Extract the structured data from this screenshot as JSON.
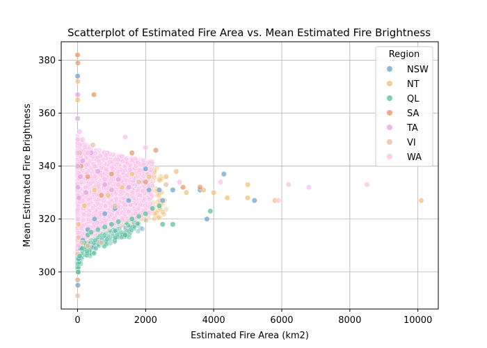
{
  "chart_data": {
    "type": "scatter",
    "title": "Scatterplot of Estimated Fire Area vs. Mean Estimated Fire Brightness",
    "xlabel": "Estimated Fire Area (km2)",
    "ylabel": "Mean Estimated Fire Brightness",
    "xlim": [
      -480,
      10600
    ],
    "ylim": [
      286,
      387
    ],
    "xticks": [
      0,
      2000,
      4000,
      6000,
      8000,
      10000
    ],
    "yticks": [
      300,
      320,
      340,
      360,
      380
    ],
    "grid": true,
    "legend": {
      "title": "Region",
      "placement": "top-right"
    },
    "series": [
      {
        "name": "NSW",
        "color": "#6fa6cf",
        "values": [
          [
            3,
            374
          ],
          [
            8,
            295
          ],
          [
            5,
            358
          ],
          [
            15,
            300
          ],
          [
            40,
            305
          ],
          [
            80,
            309
          ],
          [
            150,
            312
          ],
          [
            300,
            316
          ],
          [
            500,
            320
          ],
          [
            800,
            322
          ],
          [
            1100,
            324
          ],
          [
            1500,
            327
          ],
          [
            2000,
            339
          ],
          [
            2100,
            331
          ],
          [
            2400,
            331
          ],
          [
            2500,
            327
          ],
          [
            2800,
            331
          ],
          [
            3600,
            331
          ],
          [
            3800,
            320
          ],
          [
            4300,
            337
          ],
          [
            5200,
            327
          ]
        ]
      },
      {
        "name": "NT",
        "color": "#f0c27d",
        "values": [
          [
            2,
            365
          ],
          [
            6,
            372
          ],
          [
            4,
            300
          ],
          [
            30,
            318
          ],
          [
            200,
            325
          ],
          [
            500,
            331
          ],
          [
            900,
            329
          ],
          [
            1300,
            332
          ],
          [
            1600,
            337
          ],
          [
            2100,
            336
          ],
          [
            2600,
            336
          ],
          [
            2900,
            338
          ],
          [
            3200,
            330
          ],
          [
            3700,
            331
          ],
          [
            4000,
            330
          ],
          [
            4400,
            328
          ],
          [
            5000,
            333
          ],
          [
            5000,
            328
          ],
          [
            5800,
            327
          ],
          [
            10100,
            327
          ]
        ]
      },
      {
        "name": "QL",
        "color": "#5cc0a0",
        "values": [
          [
            20,
            300
          ],
          [
            60,
            306
          ],
          [
            120,
            309
          ],
          [
            200,
            311
          ],
          [
            300,
            314
          ],
          [
            400,
            315
          ],
          [
            600,
            316
          ],
          [
            800,
            317
          ],
          [
            1000,
            318
          ],
          [
            1200,
            319
          ],
          [
            1400,
            314
          ],
          [
            1600,
            320
          ],
          [
            1800,
            321
          ],
          [
            2000,
            322
          ],
          [
            2200,
            324
          ],
          [
            2400,
            325
          ],
          [
            2500,
            318
          ],
          [
            2800,
            318
          ],
          [
            3900,
            323
          ]
        ]
      },
      {
        "name": "SA",
        "color": "#e59a6f",
        "values": [
          [
            1,
            382
          ],
          [
            10,
            379
          ],
          [
            3,
            297
          ],
          [
            50,
            345
          ],
          [
            100,
            340
          ],
          [
            300,
            336
          ],
          [
            480,
            367
          ],
          [
            700,
            329
          ],
          [
            1000,
            337
          ],
          [
            1600,
            345
          ],
          [
            2000,
            334
          ],
          [
            2300,
            346
          ],
          [
            3100,
            332
          ],
          [
            3600,
            332
          ]
        ]
      },
      {
        "name": "TA",
        "color": "#e8a2e0",
        "values": [
          [
            2,
            367
          ],
          [
            5,
            340
          ],
          [
            10,
            332
          ],
          [
            40,
            328
          ],
          [
            80,
            336
          ],
          [
            150,
            342
          ],
          [
            250,
            330
          ],
          [
            400,
            345
          ],
          [
            600,
            338
          ],
          [
            800,
            333
          ],
          [
            1000,
            331
          ],
          [
            1200,
            335
          ],
          [
            1500,
            332
          ]
        ]
      },
      {
        "name": "VI",
        "color": "#e6c2a8",
        "values": [
          [
            2,
            291
          ],
          [
            4,
            297
          ],
          [
            30,
            313
          ],
          [
            120,
            311
          ],
          [
            300,
            310
          ],
          [
            450,
            348
          ],
          [
            700,
            311
          ],
          [
            1100,
            325
          ],
          [
            1800,
            334
          ],
          [
            2600,
            333
          ]
        ]
      },
      {
        "name": "WA",
        "color": "#f9c2e8",
        "values": [
          [
            1,
            358
          ],
          [
            5,
            345
          ],
          [
            10,
            320
          ],
          [
            20,
            310
          ],
          [
            60,
            353
          ],
          [
            150,
            350
          ],
          [
            300,
            345
          ],
          [
            500,
            340
          ],
          [
            800,
            335
          ],
          [
            1200,
            333
          ],
          [
            1400,
            351
          ],
          [
            2000,
            347
          ],
          [
            3000,
            334
          ],
          [
            4200,
            334
          ],
          [
            5900,
            327
          ],
          [
            6200,
            333
          ],
          [
            6800,
            332
          ],
          [
            8500,
            333
          ]
        ]
      }
    ],
    "dense_clouds": [
      {
        "series": "NSW",
        "count": 900,
        "xmax": 2000,
        "ymin": 303,
        "ymax": 345
      },
      {
        "series": "NT",
        "count": 700,
        "xmax": 2600,
        "ymin": 308,
        "ymax": 348
      },
      {
        "series": "QL",
        "count": 1000,
        "xmax": 1800,
        "ymin": 300,
        "ymax": 345
      },
      {
        "series": "SA",
        "count": 500,
        "xmax": 1600,
        "ymin": 308,
        "ymax": 350
      },
      {
        "series": "TA",
        "count": 600,
        "xmax": 1500,
        "ymin": 312,
        "ymax": 346
      },
      {
        "series": "VI",
        "count": 500,
        "xmax": 1200,
        "ymin": 306,
        "ymax": 345
      },
      {
        "series": "WA",
        "count": 4000,
        "xmax": 2200,
        "ymin": 308,
        "ymax": 352
      }
    ]
  }
}
